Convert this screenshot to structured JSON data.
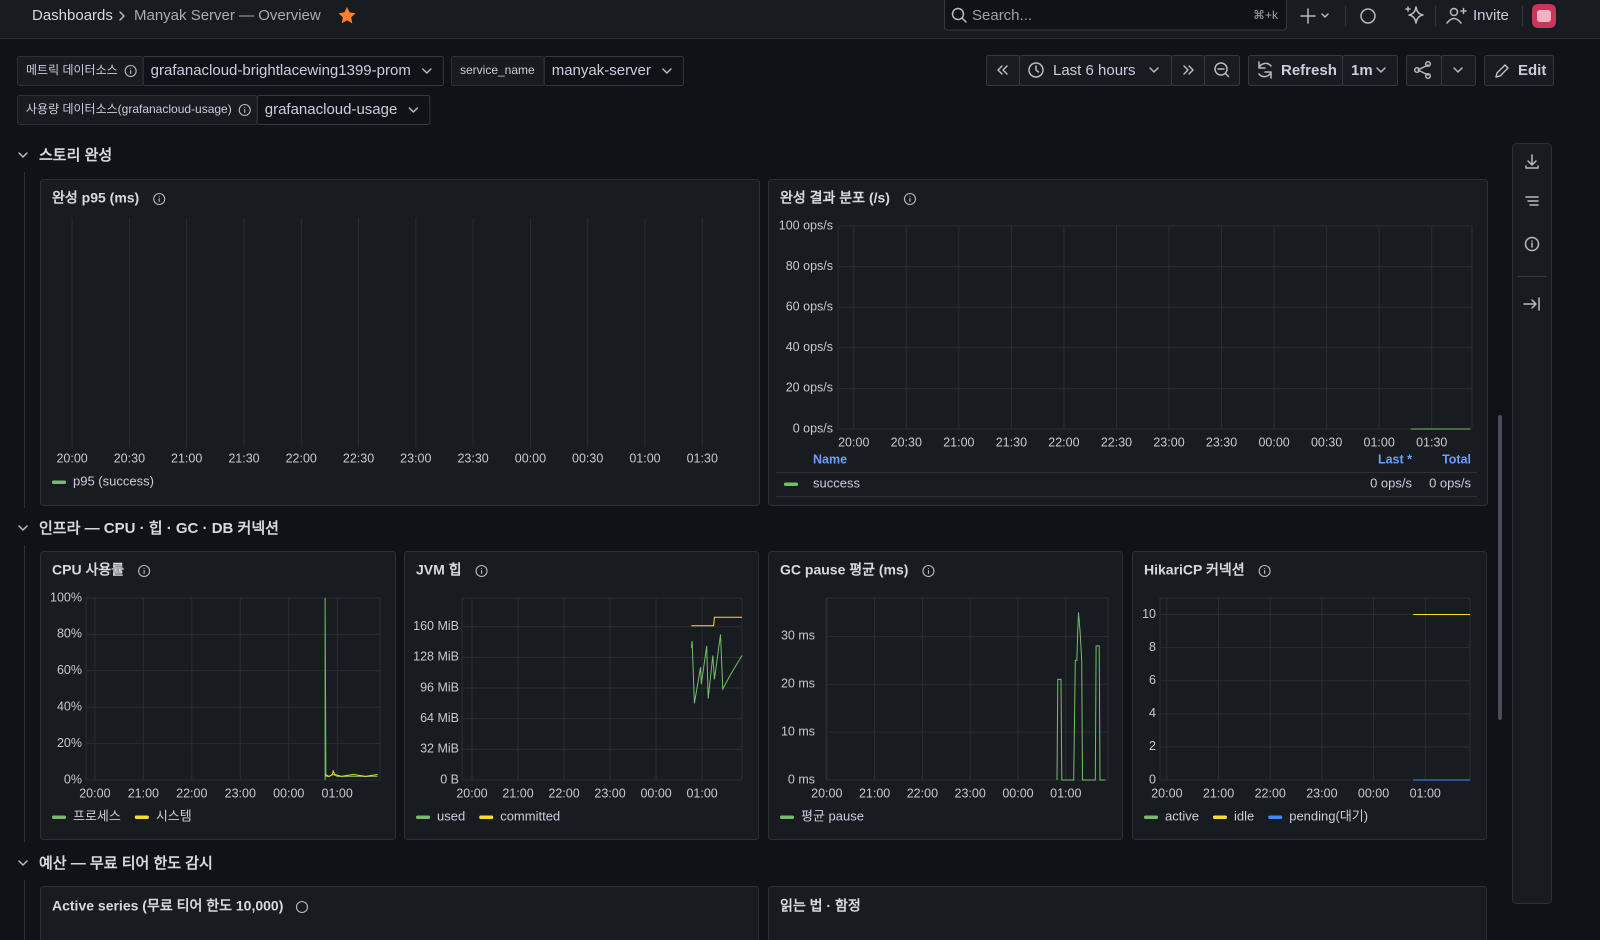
{
  "header": {
    "breadcrumb": [
      "Dashboards",
      "Manyak Server — Overview"
    ],
    "search_placeholder": "Search...",
    "search_shortcut": "⌘+k",
    "invite": "Invite"
  },
  "variables": [
    {
      "label": "메트릭 데이터소스",
      "value": "grafanacloud-brightlacewing1399-prom"
    },
    {
      "label": "service_name",
      "value": "manyak-server"
    },
    {
      "label": "사용량 데이터소스(grafanacloud-usage)",
      "value": "grafanacloud-usage"
    }
  ],
  "toolbar": {
    "time_range": "Last 6 hours",
    "refresh": "Refresh",
    "interval": "1m",
    "edit": "Edit"
  },
  "rows": [
    "스토리 완성",
    "인프라 — CPU · 힙 · GC · DB 커넥션",
    "예산 — 무료 티어 한도 감시"
  ],
  "bottom_panels": [
    "Active series (무료 티어 한도 10,000)",
    "읽는 법 · 함정"
  ],
  "chart_data": [
    {
      "type": "line",
      "title": "완성 p95 (ms)",
      "xlim": [
        "19:50",
        "01:55"
      ],
      "xticks": [
        "20:00",
        "20:30",
        "21:00",
        "21:30",
        "22:00",
        "22:30",
        "23:00",
        "23:30",
        "00:00",
        "00:30",
        "01:00",
        "01:30"
      ],
      "grid": true,
      "series": [
        {
          "name": "p95 (success)",
          "color": "#73bf69",
          "x": [],
          "values": []
        }
      ]
    },
    {
      "type": "line",
      "title": "완성 결과 분포 (/s)",
      "xlim": [
        "19:51",
        "01:53"
      ],
      "xticks": [
        "20:00",
        "20:30",
        "21:00",
        "21:30",
        "22:00",
        "22:30",
        "23:00",
        "23:30",
        "00:00",
        "00:30",
        "01:00",
        "01:30"
      ],
      "ylim": [
        0,
        100
      ],
      "yticks": [
        {
          "value": 0,
          "label": "0 ops/s"
        },
        {
          "value": 20,
          "label": "20 ops/s"
        },
        {
          "value": 40,
          "label": "40 ops/s"
        },
        {
          "value": 60,
          "label": "60 ops/s"
        },
        {
          "value": 80,
          "label": "80 ops/s"
        },
        {
          "value": 100,
          "label": "100 ops/s"
        }
      ],
      "grid": true,
      "legend_columns": [
        "Name",
        "Last *",
        "Total"
      ],
      "series": [
        {
          "name": "success",
          "color": "#73bf69",
          "x": [
            "01:18",
            "01:52"
          ],
          "values": [
            0,
            0
          ],
          "last": {
            "value": 0,
            "label": "0 ops/s"
          },
          "total": {
            "value": 0,
            "label": "0 ops/s"
          }
        }
      ]
    },
    {
      "type": "line",
      "title": "CPU 사용률",
      "xlim": [
        "19:49",
        "01:53"
      ],
      "xticks": [
        "20:00",
        "21:00",
        "22:00",
        "23:00",
        "00:00",
        "01:00"
      ],
      "ylim": [
        0,
        100
      ],
      "yticks": [
        {
          "value": 0,
          "label": "0%"
        },
        {
          "value": 20,
          "label": "20%"
        },
        {
          "value": 40,
          "label": "40%"
        },
        {
          "value": 60,
          "label": "60%"
        },
        {
          "value": 80,
          "label": "80%"
        },
        {
          "value": 100,
          "label": "100%"
        }
      ],
      "grid": true,
      "series": [
        {
          "name": "프로세스",
          "color": "#73bf69",
          "x": [
            "00:45",
            "00:45",
            "00:46",
            "00:50",
            "00:55",
            "01:00",
            "01:10",
            "01:20",
            "01:30",
            "01:40",
            "01:50"
          ],
          "values": [
            0,
            100,
            2,
            2,
            3,
            2,
            2,
            2,
            2,
            2,
            2
          ]
        },
        {
          "name": "시스템",
          "color": "#fade2a",
          "x": [
            "00:45",
            "00:50",
            "00:54",
            "00:55",
            "00:57",
            "01:05",
            "01:20",
            "01:35",
            "01:50"
          ],
          "values": [
            3,
            2,
            3,
            5,
            3,
            2,
            3,
            2,
            3
          ]
        }
      ]
    },
    {
      "type": "line",
      "title": "JVM 힙",
      "xlim": [
        "19:47",
        "01:52"
      ],
      "xticks": [
        "20:00",
        "21:00",
        "22:00",
        "23:00",
        "00:00",
        "01:00"
      ],
      "ylim": [
        0,
        190
      ],
      "yticks": [
        {
          "value": 0,
          "label": "0 B"
        },
        {
          "value": 32,
          "label": "32 MiB"
        },
        {
          "value": 64,
          "label": "64 MiB"
        },
        {
          "value": 96,
          "label": "96 MiB"
        },
        {
          "value": 128,
          "label": "128 MiB"
        },
        {
          "value": 160,
          "label": "160 MiB"
        }
      ],
      "grid": true,
      "series": [
        {
          "name": "used",
          "color": "#73bf69",
          "x": [
            "00:46",
            "00:47",
            "00:50",
            "00:58",
            "00:59",
            "01:06",
            "01:08",
            "01:14",
            "01:16",
            "01:24",
            "01:27",
            "01:37",
            "01:52"
          ],
          "values": [
            138,
            145,
            80,
            118,
            100,
            140,
            85,
            130,
            105,
            152,
            95,
            110,
            130
          ]
        },
        {
          "name": "committed",
          "color": "#fade2a",
          "x": [
            "00:46",
            "01:15",
            "01:16",
            "01:52"
          ],
          "values": [
            161,
            161,
            170,
            170
          ]
        }
      ]
    },
    {
      "type": "line",
      "title": "GC pause 평균 (ms)",
      "xlim": [
        "19:59",
        "01:53"
      ],
      "xticks": [
        "20:00",
        "21:00",
        "22:00",
        "23:00",
        "00:00",
        "01:00"
      ],
      "ylim": [
        0,
        38
      ],
      "yticks": [
        {
          "value": 0,
          "label": "0 ms"
        },
        {
          "value": 10,
          "label": "10 ms"
        },
        {
          "value": 20,
          "label": "20 ms"
        },
        {
          "value": 30,
          "label": "30 ms"
        }
      ],
      "grid": true,
      "series": [
        {
          "name": "평균 pause",
          "color": "#73bf69",
          "x": [
            "00:49",
            "00:50",
            "00:54",
            "00:55",
            "01:10",
            "01:12",
            "01:14",
            "01:15",
            "01:16",
            "01:18",
            "01:20",
            "01:21",
            "01:37",
            "01:38",
            "01:42",
            "01:43",
            "01:50"
          ],
          "values": [
            0,
            21,
            21,
            0,
            0,
            25,
            25,
            31,
            35,
            31,
            25,
            0,
            0,
            28,
            28,
            0,
            0
          ]
        }
      ]
    },
    {
      "type": "line",
      "title": "HikariCP 커넥션",
      "xlim": [
        "19:52",
        "01:52"
      ],
      "xticks": [
        "20:00",
        "21:00",
        "22:00",
        "23:00",
        "00:00",
        "01:00"
      ],
      "ylim": [
        0,
        11
      ],
      "yticks": [
        0,
        2,
        4,
        6,
        8,
        10
      ],
      "grid": true,
      "series": [
        {
          "name": "active",
          "color": "#73bf69",
          "x": [
            "00:46",
            "01:52"
          ],
          "values": [
            0,
            0
          ]
        },
        {
          "name": "idle",
          "color": "#fade2a",
          "x": [
            "00:46",
            "01:52"
          ],
          "values": [
            10,
            10
          ]
        },
        {
          "name": "pending(대기)",
          "color": "#3d8bff",
          "x": [
            "00:46",
            "01:52"
          ],
          "values": [
            0,
            0
          ]
        }
      ]
    }
  ]
}
